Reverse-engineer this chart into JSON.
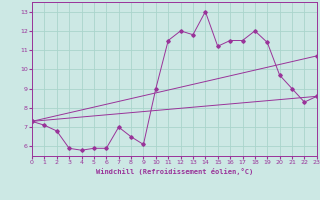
{
  "xlabel": "Windchill (Refroidissement éolien,°C)",
  "bg_color": "#cce8e4",
  "grid_color": "#aad4cc",
  "line_color": "#993399",
  "x_min": 0,
  "x_max": 23,
  "y_min": 5.5,
  "y_max": 13.5,
  "yticks": [
    6,
    7,
    8,
    9,
    10,
    11,
    12,
    13
  ],
  "xticks": [
    0,
    1,
    2,
    3,
    4,
    5,
    6,
    7,
    8,
    9,
    10,
    11,
    12,
    13,
    14,
    15,
    16,
    17,
    18,
    19,
    20,
    21,
    22,
    23
  ],
  "series1_x": [
    0,
    1,
    2,
    3,
    4,
    5,
    6,
    7,
    8,
    9,
    10,
    11,
    12,
    13,
    14,
    15,
    16,
    17,
    18,
    19,
    20,
    21,
    22,
    23
  ],
  "series1_y": [
    7.3,
    7.1,
    6.8,
    5.9,
    5.8,
    5.9,
    5.9,
    7.0,
    6.5,
    6.1,
    9.0,
    11.5,
    12.0,
    11.8,
    13.0,
    11.2,
    11.5,
    11.5,
    12.0,
    11.4,
    9.7,
    9.0,
    8.3,
    8.6
  ],
  "series2_x": [
    0,
    23
  ],
  "series2_y": [
    7.3,
    8.6
  ],
  "series3_x": [
    0,
    23
  ],
  "series3_y": [
    7.3,
    10.7
  ]
}
